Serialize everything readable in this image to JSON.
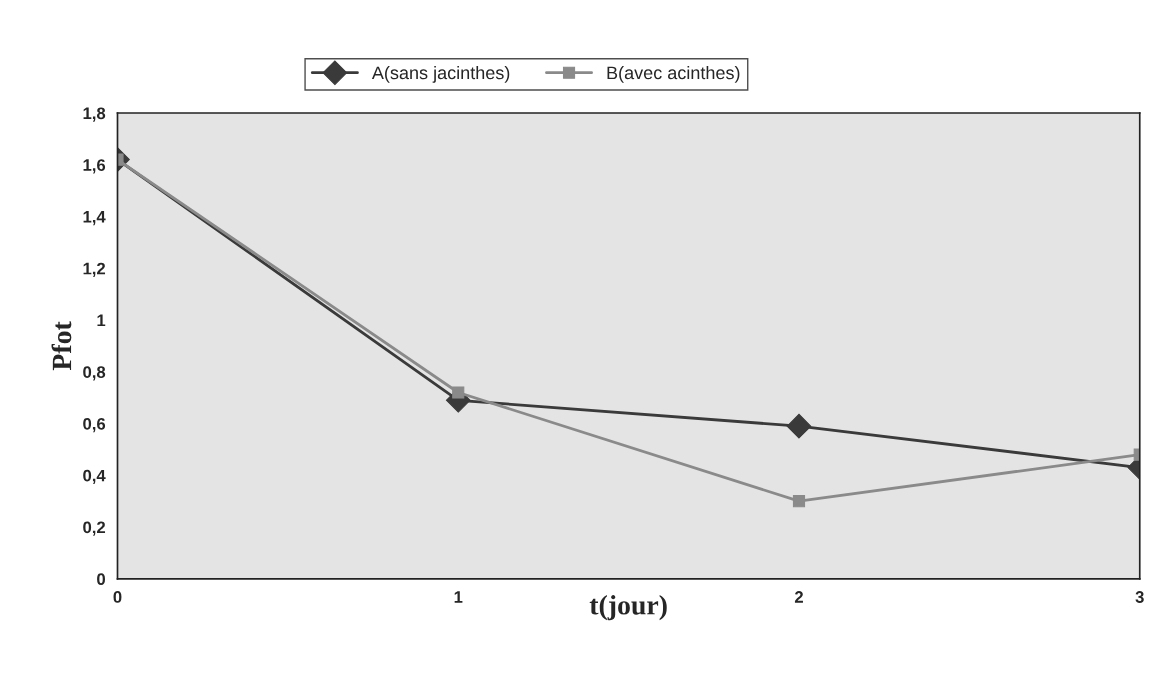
{
  "chart_data": {
    "type": "line",
    "xlabel": "t(jour)",
    "ylabel": "Pfot",
    "x": [
      0,
      1,
      2,
      3
    ],
    "series": [
      {
        "name": "A(sans jacinthes)",
        "color": "#3a3a3a",
        "marker": "diamond",
        "values": [
          1.62,
          0.69,
          0.59,
          0.43
        ]
      },
      {
        "name": "B(avec acinthes)",
        "color": "#8a8a8a",
        "marker": "square",
        "values": [
          1.62,
          0.72,
          0.3,
          0.48
        ]
      }
    ],
    "xlim": [
      0,
      3
    ],
    "xticks": [
      0,
      1,
      2,
      3
    ],
    "ylim": [
      0,
      1.8
    ],
    "yticks": [
      0,
      {
        "value": 0.2,
        "label": "0,2"
      },
      {
        "value": 0.4,
        "label": "0,4"
      },
      {
        "value": 0.6,
        "label": "0,6"
      },
      {
        "value": 0.8,
        "label": "0,8"
      },
      1,
      {
        "value": 1.2,
        "label": "1,2"
      },
      {
        "value": 1.4,
        "label": "1,4"
      },
      {
        "value": 1.6,
        "label": "1,6"
      },
      {
        "value": 1.8,
        "label": "1,8"
      }
    ],
    "grid": false,
    "legend": "top",
    "line_style": "solid"
  }
}
